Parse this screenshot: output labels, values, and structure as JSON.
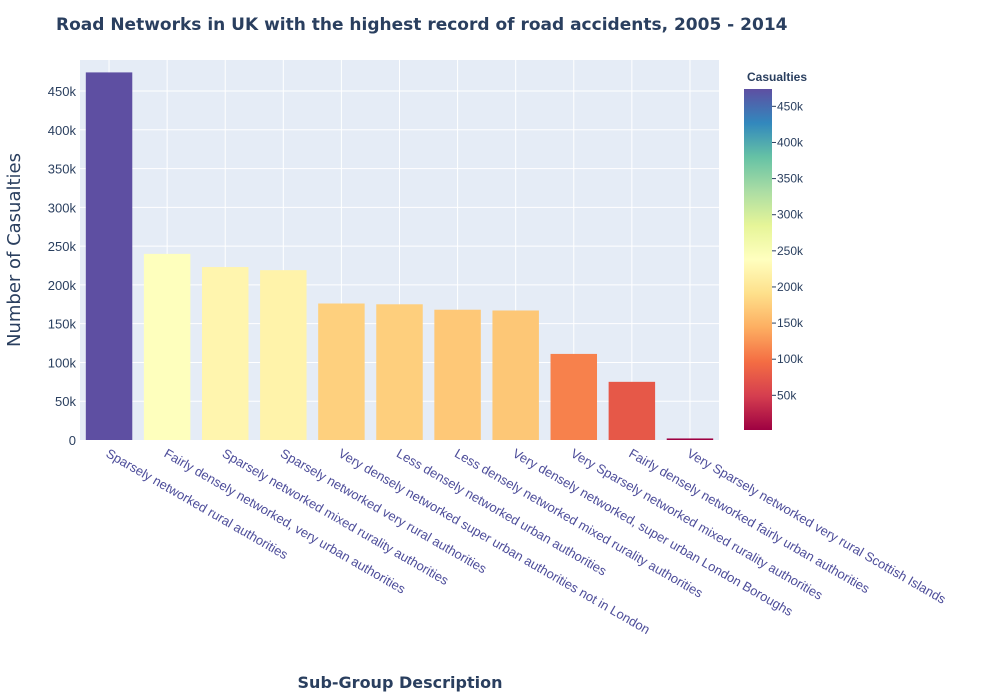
{
  "chart_data": {
    "type": "bar",
    "title": "Road Networks in UK with the highest record of road accidents, 2005 - 2014",
    "xlabel": "Sub-Group Description",
    "ylabel": "Number of Casualties",
    "ylim": [
      0,
      490000
    ],
    "yticks": [
      0,
      50000,
      100000,
      150000,
      200000,
      250000,
      300000,
      350000,
      400000,
      450000
    ],
    "ytick_labels": [
      "0",
      "50k",
      "100k",
      "150k",
      "200k",
      "250k",
      "300k",
      "350k",
      "400k",
      "450k"
    ],
    "categories": [
      "Sparsely networked rural authorities",
      "Fairly densely networked, very urban authorities",
      "Sparsely networked mixed rurality authorities",
      "Sparsely networked very rural authorities",
      "Very densely networked super urban authorities not in London",
      "Less densely networked urban authorities",
      "Less densely networked mixed rurality authorities",
      "Very densely networked, super urban London Boroughs",
      "Very Sparsely networked mixed rurality authorities",
      "Fairly densely networked fairly urban authorities",
      "Very Sparsely networked very rural Scottish Islands"
    ],
    "values": [
      474000,
      240000,
      223000,
      219000,
      176000,
      175000,
      168000,
      167000,
      111000,
      75000,
      2000
    ],
    "grid": true,
    "legend": "none",
    "colorbar": {
      "title": "Casualties",
      "colorscale": "Spectral",
      "range": [
        2000,
        474000
      ],
      "ticks": [
        50000,
        100000,
        150000,
        200000,
        250000,
        300000,
        350000,
        400000,
        450000
      ],
      "tick_labels": [
        "50k",
        "100k",
        "150k",
        "200k",
        "250k",
        "300k",
        "350k",
        "400k",
        "450k"
      ],
      "placement": "right"
    },
    "colors": {
      "plot_background": "#e5ecf6",
      "gridline": "#ffffff",
      "text": "#2a3f5f"
    }
  }
}
